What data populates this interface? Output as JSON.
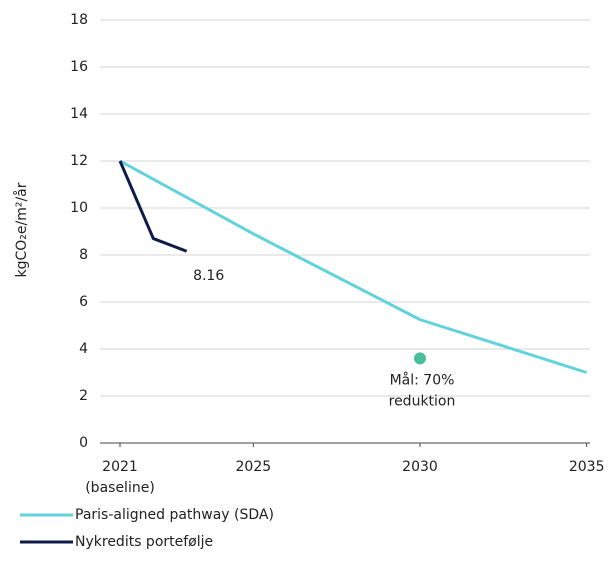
{
  "chart_data": {
    "type": "line",
    "y_label": "kgCO₂e/m²/år",
    "xlim": [
      2020.4,
      2035.1
    ],
    "xticks": [
      {
        "value": 2021,
        "label": "2021",
        "sublabel": "(baseline)"
      },
      2025,
      2030,
      2035
    ],
    "ylim": [
      0,
      18
    ],
    "yticks": [
      0,
      2,
      4,
      6,
      8,
      10,
      12,
      14,
      16,
      18
    ],
    "grid": true,
    "legend": "bottom-left",
    "series": [
      {
        "name": "Paris-aligned pathway (SDA)",
        "color": "#62d2dc",
        "x": [
          2021,
          2025,
          2030,
          2035
        ],
        "values": [
          12,
          8.9,
          5.25,
          3.0
        ]
      },
      {
        "name": "Nykredits portefølje",
        "color": "#0e1a4a",
        "x": [
          2021,
          2022,
          2023
        ],
        "values": [
          12,
          8.7,
          8.16
        ],
        "end_label": true
      }
    ],
    "target": {
      "x": 2030,
      "value": 3.6,
      "color": "#4bbf9c",
      "label": [
        "Mål: 70%",
        "reduktion"
      ]
    }
  }
}
